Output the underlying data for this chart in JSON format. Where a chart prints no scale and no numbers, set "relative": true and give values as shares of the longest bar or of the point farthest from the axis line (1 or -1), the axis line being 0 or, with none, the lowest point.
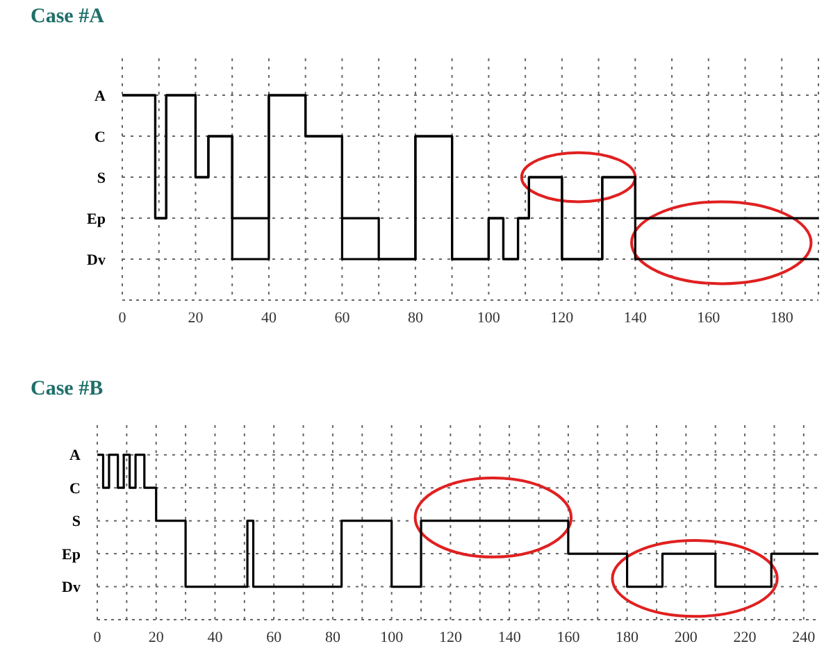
{
  "chart_data": [
    {
      "type": "step",
      "title": "Case #A",
      "relative": true,
      "xlim": [
        0,
        190
      ],
      "xticks": [
        0,
        {
          "value": 10,
          "label": null
        },
        20,
        {
          "value": 30,
          "label": null
        },
        40,
        {
          "value": 50,
          "label": null
        },
        60,
        {
          "value": 70,
          "label": null
        },
        80,
        {
          "value": 90,
          "label": null
        },
        100,
        {
          "value": 110,
          "label": null
        },
        120,
        {
          "value": 130,
          "label": null
        },
        140,
        {
          "value": 150,
          "label": null
        },
        160,
        {
          "value": 170,
          "label": null
        },
        180,
        {
          "value": 190,
          "label": null
        }
      ],
      "annotations": [
        "A",
        "C",
        "S",
        "Ep",
        "Dv"
      ],
      "grid": true,
      "line_style": "solid",
      "marker": "none",
      "series": [
        {
          "color": "#000000",
          "x": [
            0,
            9,
            12,
            20,
            23.5,
            30,
            40,
            50,
            60,
            70,
            80,
            90,
            100,
            104,
            108,
            111,
            120,
            131,
            140,
            190
          ],
          "values": [
            1,
            0.4,
            1,
            0.6,
            0.8,
            0.4,
            1,
            0.8,
            0.4,
            0.2,
            0.8,
            0.2,
            0.4,
            0.2,
            0.4,
            0.6,
            0.2,
            0.6,
            0.4,
            0.4
          ]
        },
        {
          "color": "#000000",
          "x": [
            0,
            9,
            12,
            20,
            23.5,
            30,
            40,
            50,
            60,
            80,
            90,
            100,
            104,
            108,
            111,
            120,
            131,
            140,
            190
          ],
          "values": [
            1,
            0.4,
            1,
            0.6,
            0.8,
            0.2,
            1,
            0.8,
            0.2,
            0.8,
            0.2,
            0.4,
            0.2,
            0.4,
            0.6,
            0.2,
            0.6,
            0.2,
            0.2
          ]
        }
      ]
    },
    {
      "type": "step",
      "title": "Case #B",
      "relative": true,
      "xlim": [
        0,
        245
      ],
      "xticks": [
        0,
        {
          "value": 10,
          "label": null
        },
        20,
        {
          "value": 30,
          "label": null
        },
        40,
        {
          "value": 50,
          "label": null
        },
        60,
        {
          "value": 70,
          "label": null
        },
        80,
        {
          "value": 90,
          "label": null
        },
        100,
        {
          "value": 110,
          "label": null
        },
        120,
        {
          "value": 130,
          "label": null
        },
        140,
        {
          "value": 150,
          "label": null
        },
        160,
        {
          "value": 170,
          "label": null
        },
        180,
        {
          "value": 190,
          "label": null
        },
        200,
        {
          "value": 210,
          "label": null
        },
        220,
        {
          "value": 230,
          "label": null
        },
        240
      ],
      "annotations": [
        "A",
        "C",
        "S",
        "Ep",
        "Dv"
      ],
      "grid": true,
      "line_style": "solid",
      "marker": "none",
      "series": [
        {
          "color": "#000000",
          "x": [
            0,
            2,
            4,
            7,
            9,
            11,
            13,
            16,
            20,
            30,
            51,
            53,
            83,
            100,
            110,
            160,
            180,
            192,
            210,
            229,
            245
          ],
          "values": [
            1,
            0.8,
            1,
            0.8,
            1,
            0.8,
            1,
            0.8,
            0.6,
            0.2,
            0.6,
            0.2,
            0.6,
            0.2,
            0.6,
            0.4,
            0.2,
            0.4,
            0.2,
            0.4,
            0.4
          ]
        }
      ]
    }
  ]
}
